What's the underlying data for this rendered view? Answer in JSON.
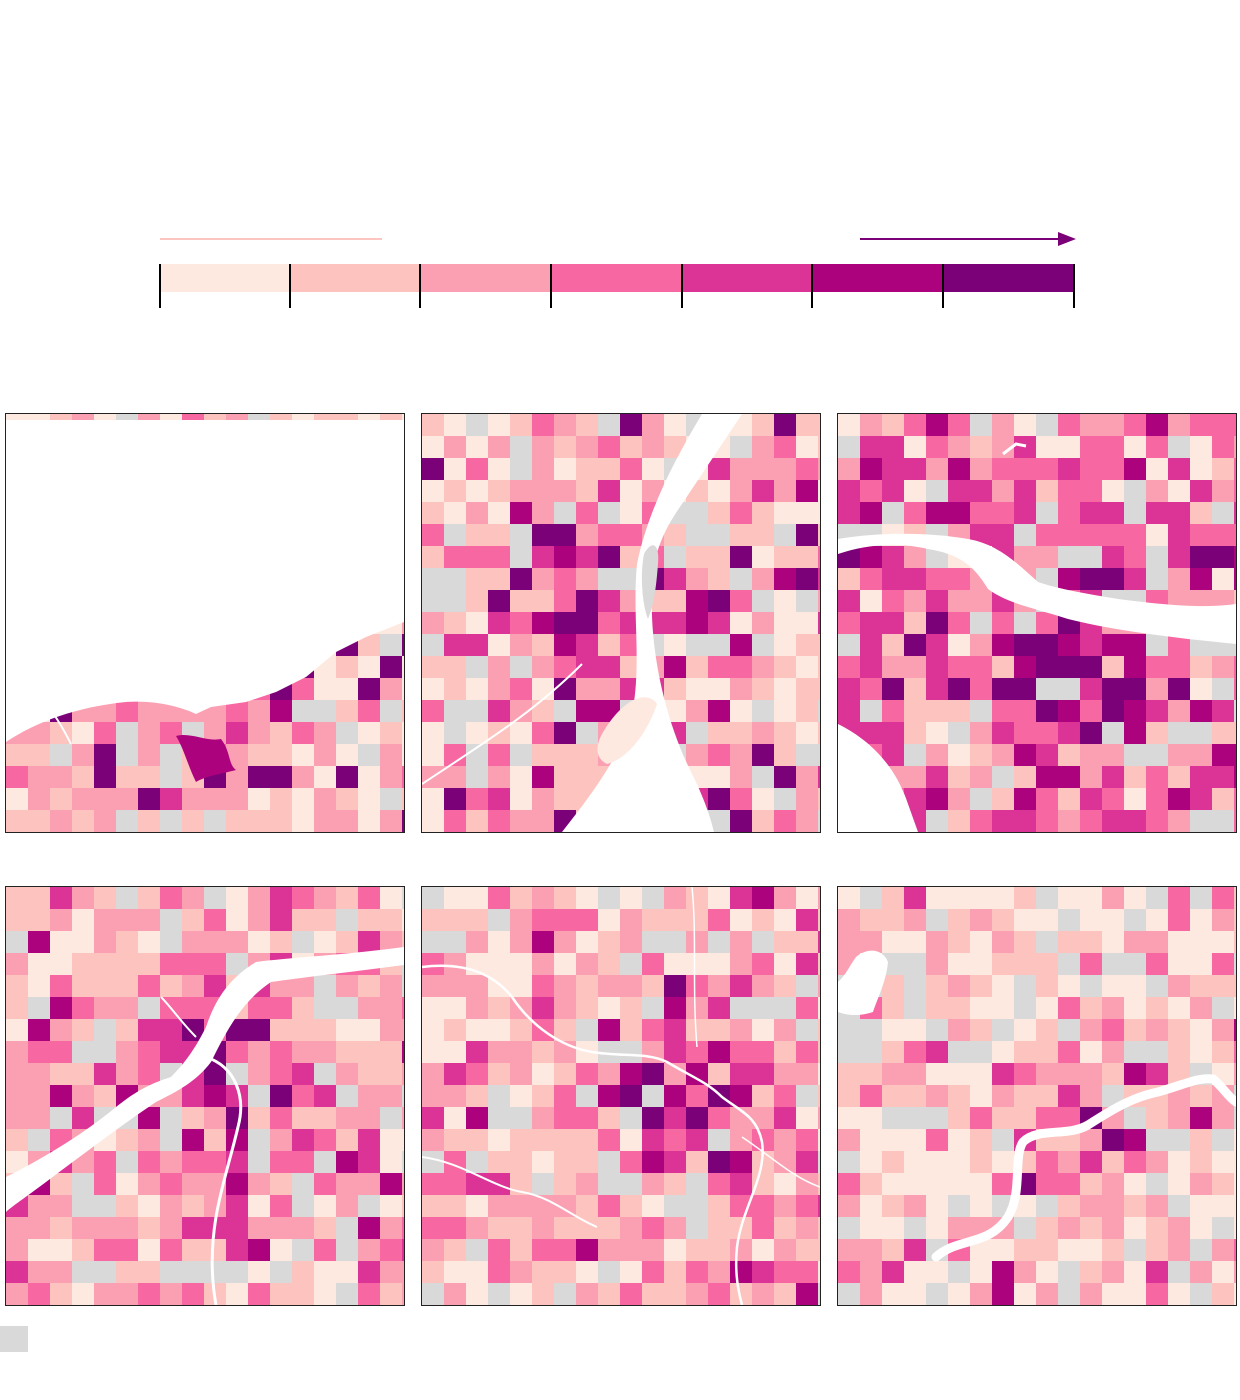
{
  "legend": {
    "scale_colors": [
      "#fee9e0",
      "#fcc3bf",
      "#fba0b3",
      "#f767a1",
      "#dc3496",
      "#ad027d",
      "#7a0177"
    ],
    "low_line_color": "#fcc5c0",
    "high_arrow_color": "#7a0177",
    "tick_color": "#000000"
  },
  "nodata": {
    "color": "#d9d9d9"
  },
  "water_color": "#ffffff",
  "maps": [
    {
      "id": "map-1",
      "seed": 11,
      "dominant": [
        0.3,
        0.3,
        0.22,
        0.06,
        0.02,
        0.0,
        0.0
      ],
      "hotspot": {
        "fx": 0.45,
        "fy": 0.65
      }
    },
    {
      "id": "map-2",
      "seed": 23,
      "dominant": [
        0.28,
        0.28,
        0.2,
        0.1,
        0.06,
        0.04,
        0.04
      ],
      "hotspot": {
        "fx": 0.42,
        "fy": 0.42
      }
    },
    {
      "id": "map-3",
      "seed": 37,
      "dominant": [
        0.06,
        0.14,
        0.2,
        0.24,
        0.26,
        0.08,
        0.02
      ],
      "hotspot": {
        "fx": 0.55,
        "fy": 0.62
      }
    },
    {
      "id": "map-4",
      "seed": 41,
      "dominant": [
        0.14,
        0.28,
        0.28,
        0.18,
        0.08,
        0.04,
        0.0
      ],
      "hotspot": {
        "fx": 0.48,
        "fy": 0.45
      }
    },
    {
      "id": "map-5",
      "seed": 53,
      "dominant": [
        0.22,
        0.28,
        0.26,
        0.14,
        0.06,
        0.04,
        0.0
      ],
      "hotspot": {
        "fx": 0.62,
        "fy": 0.5
      }
    },
    {
      "id": "map-6",
      "seed": 67,
      "dominant": [
        0.44,
        0.26,
        0.16,
        0.08,
        0.04,
        0.02,
        0.0
      ],
      "hotspot": {
        "fx": 0.66,
        "fy": 0.55
      }
    }
  ]
}
